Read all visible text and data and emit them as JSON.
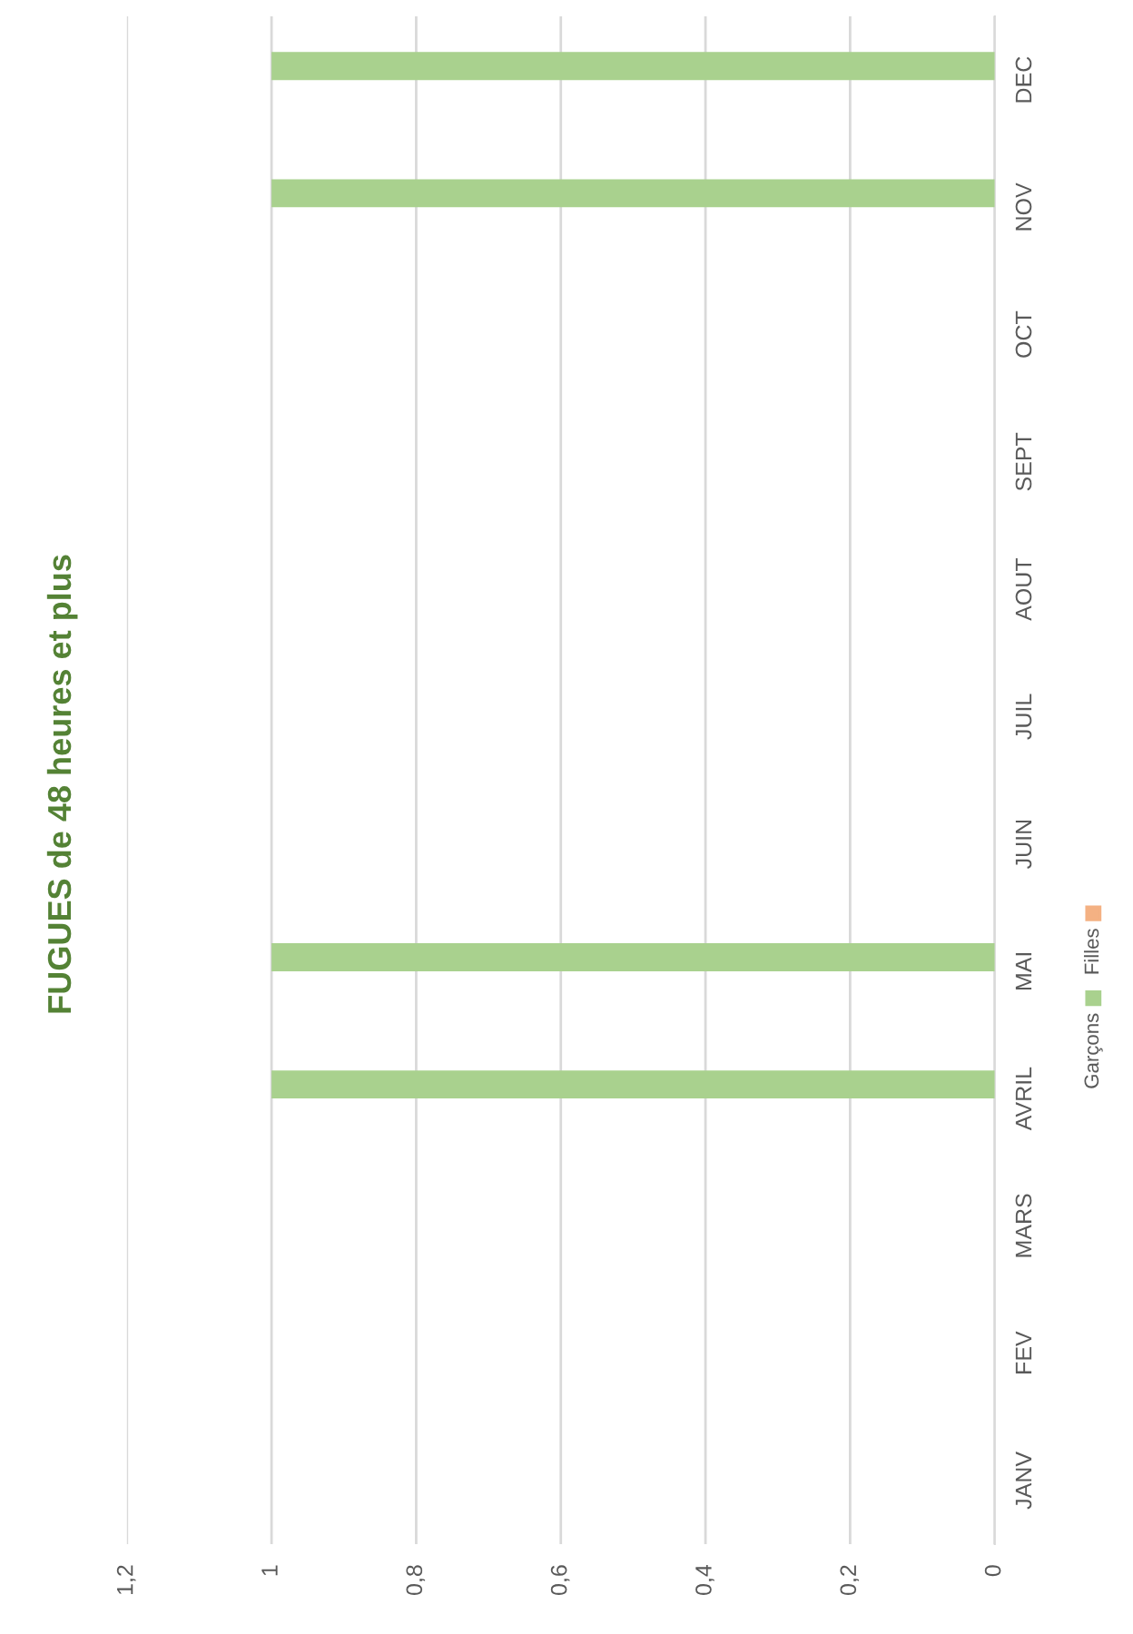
{
  "chart_data": {
    "type": "bar",
    "orientation": "horizontal",
    "title": "FUGUES de 48 heures et plus",
    "categories": [
      "DEC",
      "NOV",
      "OCT",
      "SEPT",
      "AOUT",
      "JUIL",
      "JUIN",
      "MAI",
      "AVRIL",
      "MARS",
      "FEV",
      "JANV"
    ],
    "series": [
      {
        "name": "Filles",
        "color": "#f4b183",
        "values": [
          0,
          0,
          0,
          0,
          0,
          0,
          0,
          0,
          0,
          0,
          0,
          0
        ]
      },
      {
        "name": "Garçons",
        "color": "#a9d18e",
        "values": [
          1,
          1,
          0,
          0,
          0,
          0,
          0,
          1,
          1,
          0,
          0,
          0
        ]
      }
    ],
    "xlim": [
      1.2,
      0
    ],
    "xticks": [
      {
        "value": 1.2,
        "label": "1,2"
      },
      1,
      {
        "value": 0.8,
        "label": "0,8"
      },
      {
        "value": 0.6,
        "label": "0,6"
      },
      {
        "value": 0.4,
        "label": "0,4"
      },
      {
        "value": 0.2,
        "label": "0,2"
      },
      0
    ],
    "grid": "x",
    "legend": "right"
  }
}
